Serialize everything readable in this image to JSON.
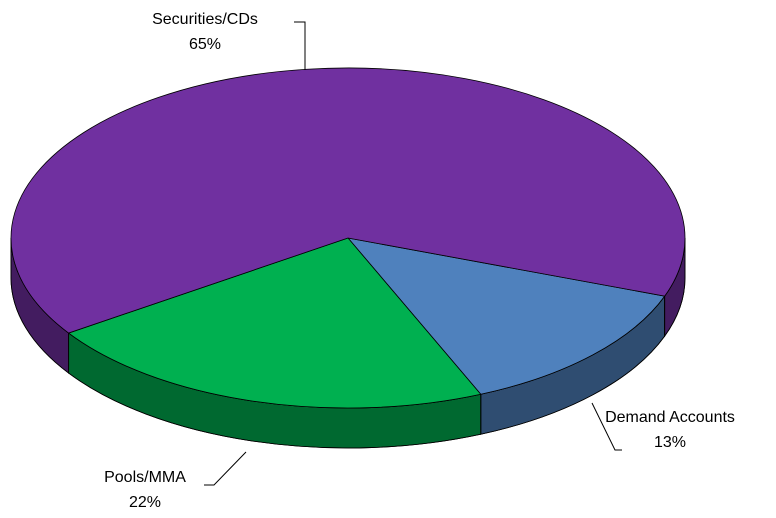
{
  "chart_data": {
    "type": "pie",
    "categories": [
      "Demand Accounts",
      "Pools/MMA",
      "Securities/CDs"
    ],
    "values": [
      13,
      22,
      65
    ],
    "value_labels": [
      "13%",
      "22%",
      "65%"
    ],
    "colors": [
      "#4f81bd",
      "#00b050",
      "#7030a0"
    ]
  }
}
